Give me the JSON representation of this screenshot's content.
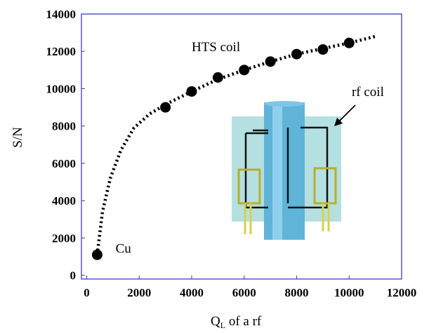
{
  "chart_data": {
    "type": "scatter",
    "xlabel_main": "Q",
    "xlabel_sub": "L",
    "xlabel_rest": " of a rf",
    "ylabel": "S/N",
    "xlim": [
      -200,
      12000
    ],
    "ylim": [
      -200,
      14000
    ],
    "x_ticks": [
      0,
      2000,
      4000,
      6000,
      8000,
      10000,
      12000
    ],
    "y_ticks": [
      0,
      2000,
      4000,
      6000,
      8000,
      10000,
      12000,
      14000
    ],
    "points": {
      "x": [
        400,
        3000,
        4000,
        5000,
        6000,
        7000,
        8000,
        9000,
        10000
      ],
      "y": [
        1100,
        9000,
        9850,
        10600,
        11000,
        11450,
        11850,
        12100,
        12450
      ]
    },
    "fit_curve": {
      "style": "dotted",
      "x": [
        400,
        600,
        900,
        1300,
        1800,
        2400,
        3000,
        4000,
        5000,
        6000,
        7000,
        8000,
        9000,
        10000,
        11000
      ],
      "y": [
        1100,
        3400,
        5200,
        6700,
        7900,
        8650,
        9150,
        9850,
        10500,
        11000,
        11450,
        11850,
        12150,
        12450,
        12800
      ]
    },
    "annotations": [
      {
        "text": "HTS coil",
        "x": 4000,
        "y": 12000
      },
      {
        "text": "rf coil",
        "x": 10100,
        "y": 9600
      },
      {
        "text": "Cu",
        "x": 1100,
        "y": 1200
      }
    ],
    "grid": false,
    "colors": {
      "marker": "#000000",
      "frame": "#3b3bc8",
      "inset_panel": "#9fd6d8",
      "inset_rod": "#5fb4d8",
      "inset_coil": "#c9c23a"
    }
  }
}
